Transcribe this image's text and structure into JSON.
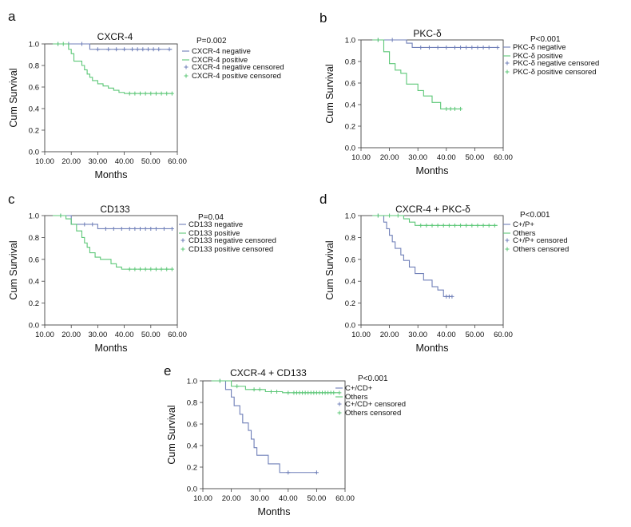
{
  "chart_data": [
    {
      "panel": "a",
      "type": "line",
      "title": "CXCR-4",
      "p_value": "P=0.002",
      "xlabel": "Months",
      "ylabel": "Cum Survival",
      "xlim": [
        10,
        60
      ],
      "ylim": [
        0,
        1
      ],
      "x_ticks": [
        "10.00",
        "20.00",
        "30.00",
        "40.00",
        "50.00",
        "60.00"
      ],
      "y_ticks": [
        "0.0",
        "0.2",
        "0.4",
        "0.6",
        "0.8",
        "1.0"
      ],
      "legend": [
        "CXCR-4 negative",
        "CXCR-4 positive",
        "CXCR-4 negative censored",
        "CXCR-4 positive censored"
      ],
      "series": [
        {
          "name": "CXCR-4 negative",
          "color": "#6f7fb8",
          "steps": [
            [
              13,
              1.0
            ],
            [
              27,
              0.95
            ]
          ],
          "end": 58,
          "censored": [
            [
              15,
              1.0
            ],
            [
              19,
              1.0
            ],
            [
              24,
              1.0
            ],
            [
              30,
              0.95
            ],
            [
              34,
              0.95
            ],
            [
              37,
              0.95
            ],
            [
              40,
              0.95
            ],
            [
              43,
              0.95
            ],
            [
              45,
              0.95
            ],
            [
              47,
              0.95
            ],
            [
              49,
              0.95
            ],
            [
              51,
              0.95
            ],
            [
              53,
              0.95
            ],
            [
              57,
              0.95
            ]
          ]
        },
        {
          "name": "CXCR-4 positive",
          "color": "#5cc777",
          "steps": [
            [
              13,
              1.0
            ],
            [
              19,
              0.95
            ],
            [
              20,
              0.91
            ],
            [
              21,
              0.84
            ],
            [
              24,
              0.8
            ],
            [
              25,
              0.76
            ],
            [
              26,
              0.72
            ],
            [
              27,
              0.69
            ],
            [
              28,
              0.66
            ],
            [
              30,
              0.63
            ],
            [
              32,
              0.61
            ],
            [
              34,
              0.59
            ],
            [
              36,
              0.57
            ],
            [
              38,
              0.55
            ],
            [
              40,
              0.54
            ]
          ],
          "end": 58,
          "censored": [
            [
              15,
              1.0
            ],
            [
              17,
              1.0
            ],
            [
              42,
              0.54
            ],
            [
              44,
              0.54
            ],
            [
              46,
              0.54
            ],
            [
              48,
              0.54
            ],
            [
              50,
              0.54
            ],
            [
              52,
              0.54
            ],
            [
              54,
              0.54
            ],
            [
              56,
              0.54
            ],
            [
              58,
              0.54
            ]
          ]
        }
      ]
    },
    {
      "panel": "b",
      "type": "line",
      "title": "PKC-δ",
      "p_value": "P<0.001",
      "xlabel": "Months",
      "ylabel": "Cum Survival",
      "xlim": [
        10,
        60
      ],
      "ylim": [
        0,
        1
      ],
      "x_ticks": [
        "10.00",
        "20.00",
        "30.00",
        "40.00",
        "50.00",
        "60.00"
      ],
      "y_ticks": [
        "0.0",
        "0.2",
        "0.4",
        "0.6",
        "0.8",
        "1.0"
      ],
      "legend": [
        "PKC-δ negative",
        "PKC-δ positive",
        "PKC-δ negative censored",
        "PKC-δ positive censored"
      ],
      "series": [
        {
          "name": "PKC-δ negative",
          "color": "#6f7fb8",
          "steps": [
            [
              14,
              1.0
            ],
            [
              26,
              0.97
            ],
            [
              28,
              0.93
            ]
          ],
          "end": 58,
          "censored": [
            [
              16,
              1.0
            ],
            [
              21,
              1.0
            ],
            [
              31,
              0.93
            ],
            [
              34,
              0.93
            ],
            [
              37,
              0.93
            ],
            [
              40,
              0.93
            ],
            [
              43,
              0.93
            ],
            [
              45,
              0.93
            ],
            [
              47,
              0.93
            ],
            [
              49,
              0.93
            ],
            [
              51,
              0.93
            ],
            [
              53,
              0.93
            ],
            [
              55,
              0.93
            ],
            [
              58,
              0.93
            ]
          ]
        },
        {
          "name": "PKC-δ positive",
          "color": "#5cc777",
          "steps": [
            [
              14,
              1.0
            ],
            [
              18,
              0.89
            ],
            [
              20,
              0.78
            ],
            [
              22,
              0.72
            ],
            [
              24,
              0.69
            ],
            [
              26,
              0.59
            ],
            [
              30,
              0.53
            ],
            [
              32,
              0.48
            ],
            [
              35,
              0.42
            ],
            [
              38,
              0.36
            ]
          ],
          "end": 45,
          "censored": [
            [
              16,
              1.0
            ],
            [
              40,
              0.36
            ],
            [
              41.5,
              0.36
            ],
            [
              43,
              0.36
            ],
            [
              45,
              0.36
            ]
          ]
        }
      ]
    },
    {
      "panel": "c",
      "type": "line",
      "title": "CD133",
      "p_value": "P=0.04",
      "xlabel": "Months",
      "ylabel": "Cum Survival",
      "xlim": [
        10,
        60
      ],
      "ylim": [
        0,
        1
      ],
      "x_ticks": [
        "10.00",
        "20.00",
        "30.00",
        "40.00",
        "50.00",
        "60.00"
      ],
      "y_ticks": [
        "0.0",
        "0.2",
        "0.4",
        "0.6",
        "0.8",
        "1.0"
      ],
      "legend": [
        "CD133 negative",
        "CD133 positive",
        "CD133 negative censored",
        "CD133 positive censored"
      ],
      "series": [
        {
          "name": "CD133 negative",
          "color": "#6f7fb8",
          "steps": [
            [
              13,
              1.0
            ],
            [
              20,
              0.92
            ],
            [
              30,
              0.88
            ]
          ],
          "end": 58,
          "censored": [
            [
              16,
              1.0
            ],
            [
              25,
              0.92
            ],
            [
              28,
              0.92
            ],
            [
              33,
              0.88
            ],
            [
              36,
              0.88
            ],
            [
              39,
              0.88
            ],
            [
              42,
              0.88
            ],
            [
              44,
              0.88
            ],
            [
              46,
              0.88
            ],
            [
              48,
              0.88
            ],
            [
              50,
              0.88
            ],
            [
              52,
              0.88
            ],
            [
              55,
              0.88
            ],
            [
              58,
              0.88
            ]
          ]
        },
        {
          "name": "CD133 positive",
          "color": "#5cc777",
          "steps": [
            [
              13,
              1.0
            ],
            [
              18,
              0.97
            ],
            [
              20,
              0.92
            ],
            [
              22,
              0.86
            ],
            [
              24,
              0.8
            ],
            [
              25,
              0.75
            ],
            [
              26,
              0.71
            ],
            [
              27,
              0.66
            ],
            [
              29,
              0.62
            ],
            [
              31,
              0.6
            ],
            [
              35,
              0.56
            ],
            [
              37,
              0.53
            ],
            [
              39,
              0.51
            ]
          ],
          "end": 58,
          "censored": [
            [
              16,
              1.0
            ],
            [
              42,
              0.51
            ],
            [
              44,
              0.51
            ],
            [
              46,
              0.51
            ],
            [
              48,
              0.51
            ],
            [
              50,
              0.51
            ],
            [
              52,
              0.51
            ],
            [
              54,
              0.51
            ],
            [
              56,
              0.51
            ],
            [
              58,
              0.51
            ]
          ]
        }
      ]
    },
    {
      "panel": "d",
      "type": "line",
      "title": "CXCR-4 + PKC-δ",
      "p_value": "P<0.001",
      "xlabel": "Months",
      "ylabel": "Cum Survival",
      "xlim": [
        10,
        60
      ],
      "ylim": [
        0,
        1
      ],
      "x_ticks": [
        "10.00",
        "20.00",
        "30.00",
        "40.00",
        "50.00",
        "60.00"
      ],
      "y_ticks": [
        "0.0",
        "0.2",
        "0.4",
        "0.6",
        "0.8",
        "1.0"
      ],
      "legend": [
        "C+/P+",
        "Others",
        "C+/P+ censored",
        "Others censored"
      ],
      "series": [
        {
          "name": "C+/P+",
          "color": "#6f7fb8",
          "steps": [
            [
              14,
              1.0
            ],
            [
              18,
              0.94
            ],
            [
              19,
              0.88
            ],
            [
              20,
              0.82
            ],
            [
              21,
              0.76
            ],
            [
              22,
              0.7
            ],
            [
              24,
              0.64
            ],
            [
              25,
              0.59
            ],
            [
              27,
              0.53
            ],
            [
              29,
              0.47
            ],
            [
              32,
              0.41
            ],
            [
              35,
              0.35
            ],
            [
              37,
              0.32
            ],
            [
              39,
              0.26
            ]
          ],
          "end": 42,
          "censored": [
            [
              16,
              1.0
            ],
            [
              40,
              0.26
            ],
            [
              41,
              0.26
            ],
            [
              42,
              0.26
            ]
          ]
        },
        {
          "name": "Others",
          "color": "#5cc777",
          "steps": [
            [
              14,
              1.0
            ],
            [
              25,
              0.97
            ],
            [
              27,
              0.94
            ],
            [
              29,
              0.91
            ]
          ],
          "end": 58,
          "censored": [
            [
              16,
              1.0
            ],
            [
              20,
              1.0
            ],
            [
              23,
              1.0
            ],
            [
              31,
              0.91
            ],
            [
              33,
              0.91
            ],
            [
              35,
              0.91
            ],
            [
              37,
              0.91
            ],
            [
              39,
              0.91
            ],
            [
              41,
              0.91
            ],
            [
              43,
              0.91
            ],
            [
              45,
              0.91
            ],
            [
              47,
              0.91
            ],
            [
              49,
              0.91
            ],
            [
              51,
              0.91
            ],
            [
              53,
              0.91
            ],
            [
              55,
              0.91
            ],
            [
              57,
              0.91
            ]
          ]
        }
      ]
    },
    {
      "panel": "e",
      "type": "line",
      "title": "CXCR-4 + CD133",
      "p_value": "P<0.001",
      "xlabel": "Months",
      "ylabel": "Cum Survival",
      "xlim": [
        10,
        60
      ],
      "ylim": [
        0,
        1
      ],
      "x_ticks": [
        "10.00",
        "20.00",
        "30.00",
        "40.00",
        "50.00",
        "60.00"
      ],
      "y_ticks": [
        "0.0",
        "0.2",
        "0.4",
        "0.6",
        "0.8",
        "1.0"
      ],
      "legend": [
        "C+/CD+",
        "Others",
        "C+/CD+ censored",
        "Others censored"
      ],
      "series": [
        {
          "name": "C+/CD+",
          "color": "#6f7fb8",
          "steps": [
            [
              13,
              1.0
            ],
            [
              18,
              0.92
            ],
            [
              20,
              0.85
            ],
            [
              21,
              0.77
            ],
            [
              23,
              0.69
            ],
            [
              24,
              0.61
            ],
            [
              26,
              0.54
            ],
            [
              27,
              0.46
            ],
            [
              28,
              0.38
            ],
            [
              29,
              0.31
            ],
            [
              33,
              0.23
            ],
            [
              37,
              0.15
            ]
          ],
          "end": 50,
          "censored": [
            [
              16,
              1.0
            ],
            [
              40,
              0.15
            ],
            [
              50,
              0.15
            ]
          ]
        },
        {
          "name": "Others",
          "color": "#5cc777",
          "steps": [
            [
              13,
              1.0
            ],
            [
              20,
              0.95
            ],
            [
              25,
              0.92
            ],
            [
              32,
              0.9
            ],
            [
              38,
              0.89
            ]
          ],
          "end": 58,
          "censored": [
            [
              16,
              1.0
            ],
            [
              22,
              0.95
            ],
            [
              28,
              0.92
            ],
            [
              30,
              0.92
            ],
            [
              34,
              0.9
            ],
            [
              36,
              0.9
            ],
            [
              40,
              0.89
            ],
            [
              42,
              0.89
            ],
            [
              43,
              0.89
            ],
            [
              44,
              0.89
            ],
            [
              45,
              0.89
            ],
            [
              46,
              0.89
            ],
            [
              47,
              0.89
            ],
            [
              48,
              0.89
            ],
            [
              49,
              0.89
            ],
            [
              50,
              0.89
            ],
            [
              51,
              0.89
            ],
            [
              52,
              0.89
            ],
            [
              53,
              0.89
            ],
            [
              54,
              0.89
            ],
            [
              55,
              0.89
            ],
            [
              56,
              0.89
            ],
            [
              58,
              0.89
            ]
          ]
        }
      ]
    }
  ]
}
